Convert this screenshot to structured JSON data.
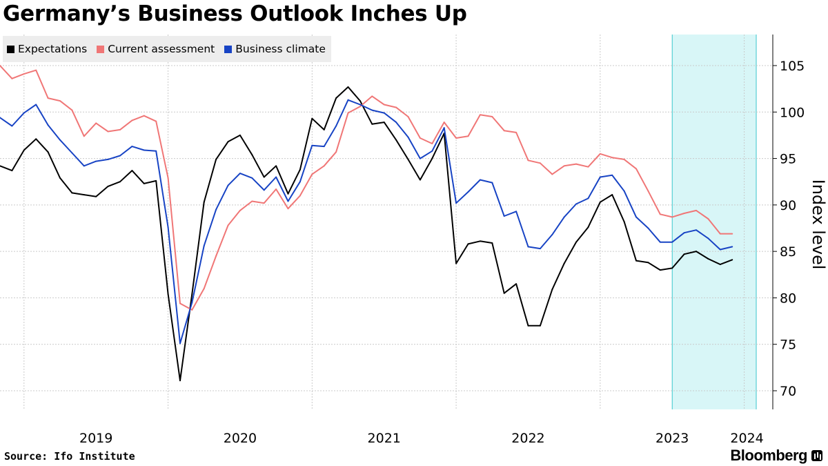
{
  "chart_data": {
    "type": "line",
    "title": "Germany’s Business Outlook Inches Up",
    "xlabel": "",
    "ylabel": "Index level",
    "ylim": [
      68,
      108
    ],
    "y_ticks": [
      70,
      75,
      80,
      85,
      90,
      95,
      100,
      105
    ],
    "x_tick_labels": [
      "2019",
      "2020",
      "2021",
      "2022",
      "2023",
      "2024"
    ],
    "x_start": "2018-11",
    "x_end": "2024-02",
    "highlight_range": [
      "2023-07",
      "2024-02"
    ],
    "highlight_color": "#d8f6f7",
    "legend_position": "top-left",
    "grid": true,
    "series": [
      {
        "name": "Expectations",
        "color": "#000000",
        "values": [
          94.2,
          93.7,
          95.9,
          97.1,
          95.7,
          92.9,
          91.3,
          91.1,
          90.9,
          92.0,
          92.5,
          93.7,
          92.3,
          92.6,
          80.4,
          71.1,
          80.4,
          90.3,
          94.9,
          96.8,
          97.5,
          95.4,
          93.0,
          94.2,
          91.2,
          93.8,
          99.3,
          98.1,
          101.5,
          102.7,
          101.2,
          98.7,
          98.9,
          97.0,
          94.9,
          92.7,
          95.0,
          97.7,
          83.7,
          85.8,
          86.1,
          85.9,
          80.5,
          81.5,
          77.0,
          77.0,
          80.9,
          83.7,
          86.0,
          87.6,
          90.3,
          91.1,
          88.2,
          84.0,
          83.8,
          83.0,
          83.2,
          84.7,
          85.0,
          84.2,
          83.6,
          84.1
        ],
        "label": "Expectations"
      },
      {
        "name": "Current assessment",
        "color": "#f07676",
        "values": [
          105.0,
          103.6,
          104.1,
          104.5,
          101.5,
          101.2,
          100.2,
          97.4,
          98.8,
          97.9,
          98.1,
          99.1,
          99.6,
          99.0,
          92.9,
          79.4,
          78.7,
          81.0,
          84.5,
          87.8,
          89.4,
          90.4,
          90.2,
          91.7,
          89.6,
          91.0,
          93.3,
          94.2,
          95.7,
          99.9,
          100.6,
          101.7,
          100.8,
          100.5,
          99.5,
          97.2,
          96.6,
          98.9,
          97.2,
          97.4,
          99.7,
          99.5,
          98.0,
          97.8,
          94.8,
          94.5,
          93.3,
          94.2,
          94.4,
          94.1,
          95.5,
          95.1,
          94.9,
          93.9,
          91.5,
          89.0,
          88.7,
          89.1,
          89.4,
          88.5,
          86.9,
          86.9
        ],
        "label": "Current assessment"
      },
      {
        "name": "Business climate",
        "color": "#1743c4",
        "values": [
          99.4,
          98.5,
          99.9,
          100.8,
          98.6,
          97.0,
          95.6,
          94.2,
          94.7,
          94.9,
          95.3,
          96.3,
          95.9,
          95.8,
          87.6,
          75.1,
          79.5,
          85.6,
          89.5,
          92.1,
          93.4,
          92.9,
          91.6,
          93.0,
          90.4,
          92.5,
          96.4,
          96.3,
          98.5,
          101.3,
          100.8,
          100.2,
          99.9,
          98.9,
          97.3,
          95.0,
          95.8,
          98.3,
          90.2,
          91.4,
          92.7,
          92.4,
          88.8,
          89.3,
          85.5,
          85.3,
          86.8,
          88.7,
          90.1,
          90.7,
          93.0,
          93.2,
          91.5,
          88.7,
          87.5,
          86.0,
          86.0,
          87.0,
          87.3,
          86.4,
          85.2,
          85.5
        ],
        "label": "Business climate"
      }
    ]
  },
  "source": "Source: Ifo Institute",
  "brand": "Bloomberg"
}
